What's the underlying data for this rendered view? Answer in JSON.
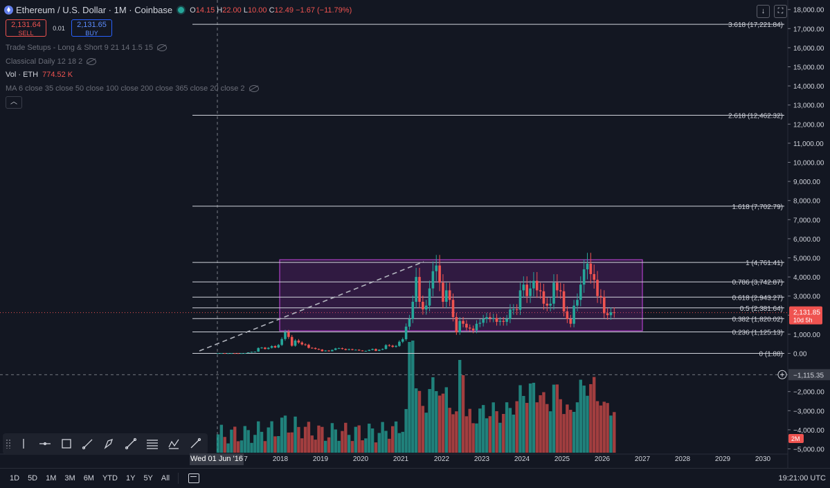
{
  "header": {
    "title": "Ethereum / U.S. Dollar · 1M · Coinbase",
    "o_label": "O",
    "o_value": "14.15",
    "h_label": "H",
    "h_value": "22.00",
    "l_label": "L",
    "l_value": "10.00",
    "c_label": "C",
    "c_value": "12.49",
    "change": "−1.67 (−11.79%)"
  },
  "trade": {
    "sell_price": "2,131.64",
    "sell_label": "SELL",
    "spread": "0.01",
    "buy_price": "2,131.65",
    "buy_label": "BUY"
  },
  "indicators": {
    "trade_setups": "Trade Setups - Long & Short 9 21 14 1.5 15",
    "classical": "Classical Daily 12 18 2",
    "vol_label": "Vol · ETH",
    "vol_value": "774.52 K",
    "ma": "MA 6 close 35 close 50 close 100 close 200 close 365 close 20 close 2"
  },
  "price_axis": {
    "labels": [
      "18,000.00",
      "17,000.00",
      "16,000.00",
      "15,000.00",
      "14,000.00",
      "13,000.00",
      "12,000.00",
      "11,000.00",
      "10,000.00",
      "9,000.00",
      "8,000.00",
      "7,000.00",
      "6,000.00",
      "5,000.00",
      "4,000.00",
      "3,000.00",
      "2,000.00",
      "1,000.00",
      "0.00",
      "−1,115.35",
      "−2,000.00",
      "−3,000.00",
      "−4,000.00",
      "−5,000.00"
    ],
    "current_price": "2,131.85",
    "countdown": "10d 5h",
    "vol_tag": "2M"
  },
  "fib": {
    "levels": [
      {
        "ratio": 3.618,
        "price": 17221.84,
        "label": "3.618 (17,221.84)"
      },
      {
        "ratio": 2.618,
        "price": 12462.32,
        "label": "2.618 (12,462.32)"
      },
      {
        "ratio": 1.618,
        "price": 7702.79,
        "label": "1.618 (7,702.79)"
      },
      {
        "ratio": 1,
        "price": 4761.41,
        "label": "1 (4,761.41)"
      },
      {
        "ratio": 0.786,
        "price": 3742.87,
        "label": "0.786 (3,742.87)"
      },
      {
        "ratio": 0.618,
        "price": 2943.27,
        "label": "0.618 (2,943.27)"
      },
      {
        "ratio": 0.5,
        "price": 2381.64,
        "label": "0.5 (2,381.64)"
      },
      {
        "ratio": 0.382,
        "price": 1820.02,
        "label": "0.382 (1,820.02)"
      },
      {
        "ratio": 0.236,
        "price": 1125.13,
        "label": "0.236 (1,125.13)"
      },
      {
        "ratio": 0,
        "price": 1.88,
        "label": "0 (1.88)"
      }
    ]
  },
  "time_axis": {
    "labels": [
      "7",
      "2018",
      "2019",
      "2020",
      "2021",
      "2022",
      "2023",
      "2024",
      "2025",
      "2026",
      "2027",
      "2028",
      "2029",
      "2030"
    ],
    "crosshair_date": "Wed 01 Jun '16"
  },
  "ranges": [
    "1D",
    "5D",
    "1M",
    "3M",
    "6M",
    "YTD",
    "1Y",
    "5Y",
    "All"
  ],
  "clock": "19:21:00 UTC",
  "colors": {
    "up": "#26a69a",
    "down": "#ef5350",
    "box": "#9c27b0",
    "background": "#131722"
  },
  "chart_data": {
    "type": "candlestick",
    "title": "Ethereum / U.S. Dollar · 1M · Coinbase",
    "ylim": [
      -5000,
      18000
    ],
    "closes": [
      12,
      14,
      8,
      10,
      12,
      11,
      9,
      12,
      15,
      50,
      80,
      90,
      280,
      300,
      230,
      290,
      380,
      310,
      440,
      750,
      1100,
      860,
      400,
      670,
      570,
      470,
      450,
      290,
      280,
      230,
      200,
      110,
      150,
      110,
      180,
      260,
      270,
      230,
      180,
      220,
      180,
      190,
      150,
      120,
      130,
      180,
      230,
      130,
      190,
      230,
      430,
      400,
      340,
      390,
      610,
      740,
      1400,
      1800,
      2700,
      4000,
      2700,
      2300,
      2500,
      3400,
      4300,
      4600,
      3700,
      2700,
      3300,
      2800,
      1900,
      1100,
      1700,
      1550,
      1350,
      1300,
      1200,
      1550,
      1600,
      1800,
      1900,
      1850,
      1850,
      1650,
      1700,
      1650,
      1800,
      2300,
      2300,
      2280,
      3300,
      3600,
      3000,
      3400,
      3800,
      3300,
      3250,
      2600,
      2500,
      2600,
      3700,
      3300,
      3250,
      2200,
      1800,
      1550,
      2500,
      2800,
      3600,
      4400,
      4700,
      4150,
      3850,
      3000,
      2950,
      2100,
      2000,
      2150,
      2131
    ]
  }
}
